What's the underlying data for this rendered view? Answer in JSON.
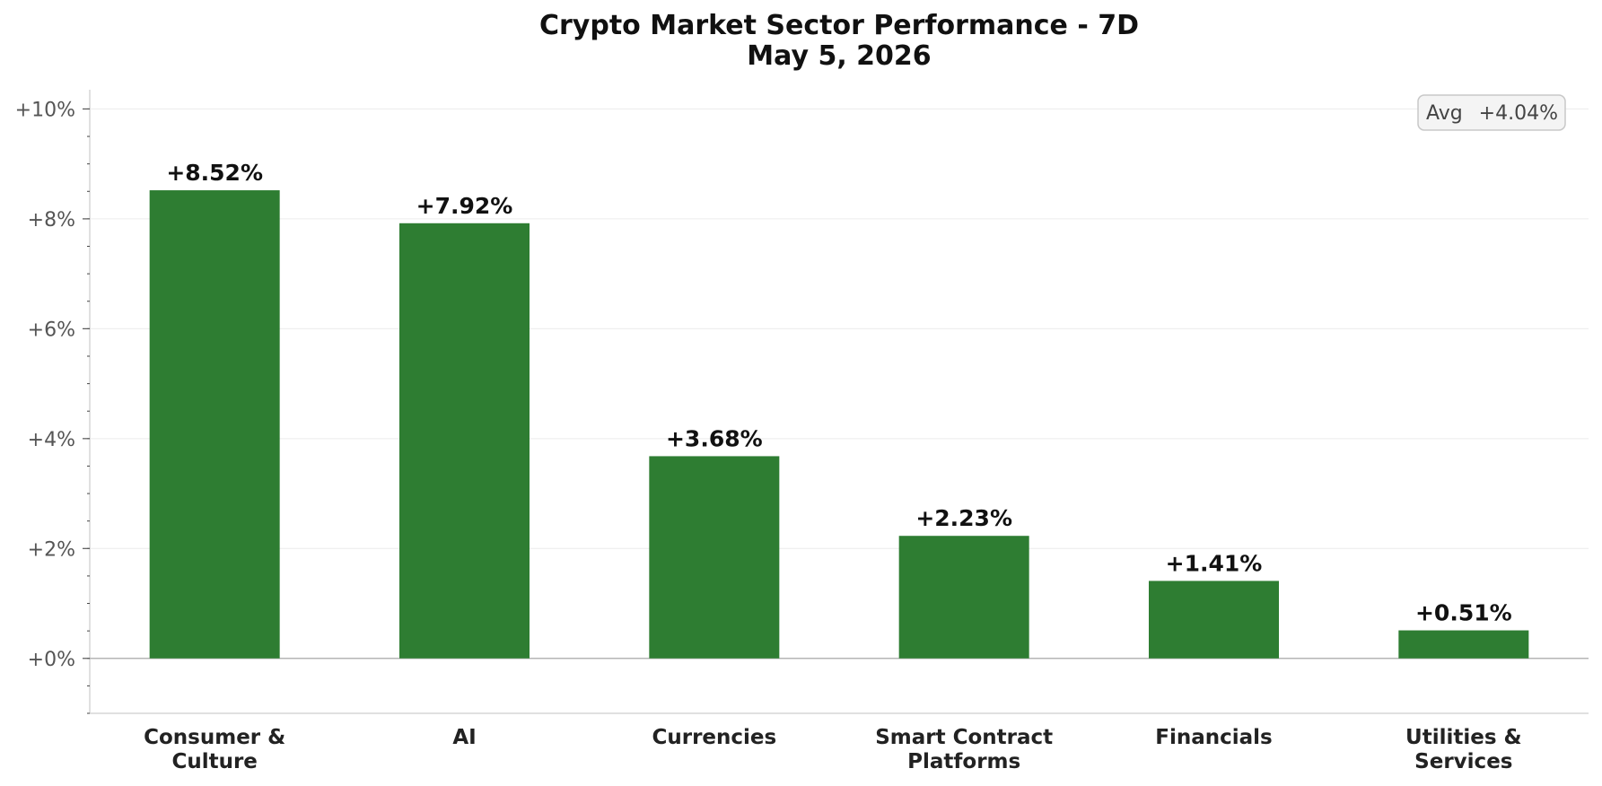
{
  "chart_data": {
    "type": "bar",
    "title": "Crypto Market Sector Performance - 7D",
    "subtitle": "May 5, 2026",
    "categories": [
      [
        "Consumer &",
        "Culture"
      ],
      [
        "AI"
      ],
      [
        "Currencies"
      ],
      [
        "Smart Contract",
        "Platforms"
      ],
      [
        "Financials"
      ],
      [
        "Utilities &",
        "Services"
      ]
    ],
    "values": [
      8.52,
      7.92,
      3.68,
      2.23,
      1.41,
      0.51
    ],
    "value_labels": [
      "+8.52%",
      "+7.92%",
      "+3.68%",
      "+2.23%",
      "+1.41%",
      "+0.51%"
    ],
    "yticks": [
      0,
      2,
      4,
      6,
      8,
      10
    ],
    "ytick_labels": [
      "+0%",
      "+2%",
      "+4%",
      "+6%",
      "+8%",
      "+10%"
    ],
    "ylim": [
      -1,
      10.35
    ],
    "minor_tick_step": 0.5,
    "grid": true,
    "bar_color": "#2e7d32",
    "average": {
      "label": "Avg",
      "value_label": "+4.04%",
      "value": 4.04,
      "position": "top-right"
    }
  }
}
